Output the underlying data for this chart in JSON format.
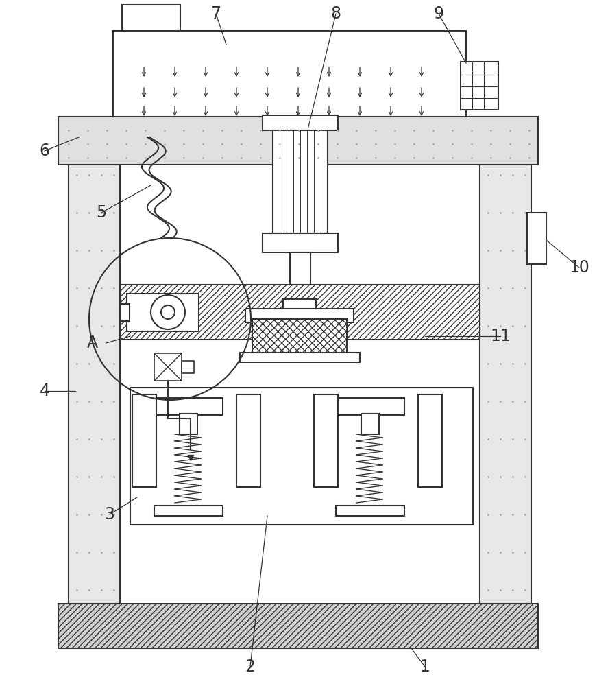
{
  "bg_color": "#ffffff",
  "lc": "#333333",
  "figsize": [
    8.71,
    10.0
  ],
  "dpi": 100,
  "title": ""
}
